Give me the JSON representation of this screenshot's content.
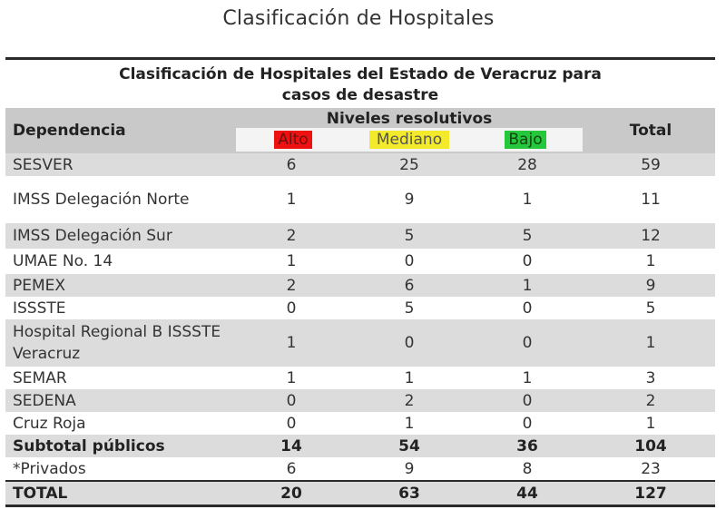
{
  "page_title": "Clasificación de Hospitales",
  "table": {
    "caption_line1": "Clasificación de Hospitales del Estado de Veracruz para",
    "caption_line2": "casos de desastre",
    "headers": {
      "dependencia": "Dependencia",
      "niveles": "Niveles resolutivos",
      "total": "Total",
      "alto": "Alto",
      "mediano": "Mediano",
      "bajo": "Bajo"
    },
    "level_colors": {
      "alto": "#e11111",
      "mediano": "#f2ea2a",
      "bajo": "#25c83a"
    },
    "rows": [
      {
        "dep": "SESVER",
        "alto": "6",
        "mediano": "25",
        "bajo": "28",
        "total": "59"
      },
      {
        "dep": "IMSS Delegación Norte",
        "alto": "1",
        "mediano": "9",
        "bajo": "1",
        "total": "11"
      },
      {
        "dep": "IMSS Delegación Sur",
        "alto": "2",
        "mediano": "5",
        "bajo": "5",
        "total": "12"
      },
      {
        "dep": "UMAE No. 14",
        "alto": "1",
        "mediano": "0",
        "bajo": "0",
        "total": "1"
      },
      {
        "dep": "PEMEX",
        "alto": "2",
        "mediano": "6",
        "bajo": "1",
        "total": "9"
      },
      {
        "dep": "ISSSTE",
        "alto": "0",
        "mediano": "5",
        "bajo": "0",
        "total": "5"
      },
      {
        "dep": "Hospital Regional B ISSSTE Veracruz",
        "alto": "1",
        "mediano": "0",
        "bajo": "0",
        "total": "1"
      },
      {
        "dep": "SEMAR",
        "alto": "1",
        "mediano": "1",
        "bajo": "1",
        "total": "3"
      },
      {
        "dep": "SEDENA",
        "alto": "0",
        "mediano": "2",
        "bajo": "0",
        "total": "2"
      },
      {
        "dep": "Cruz Roja",
        "alto": "0",
        "mediano": "1",
        "bajo": "0",
        "total": "1"
      },
      {
        "dep": "Subtotal públicos",
        "alto": "14",
        "mediano": "54",
        "bajo": "36",
        "total": "104"
      },
      {
        "dep": "*Privados",
        "alto": "6",
        "mediano": "9",
        "bajo": "8",
        "total": "23"
      },
      {
        "dep": "TOTAL",
        "alto": "20",
        "mediano": "63",
        "bajo": "44",
        "total": "127"
      }
    ]
  }
}
